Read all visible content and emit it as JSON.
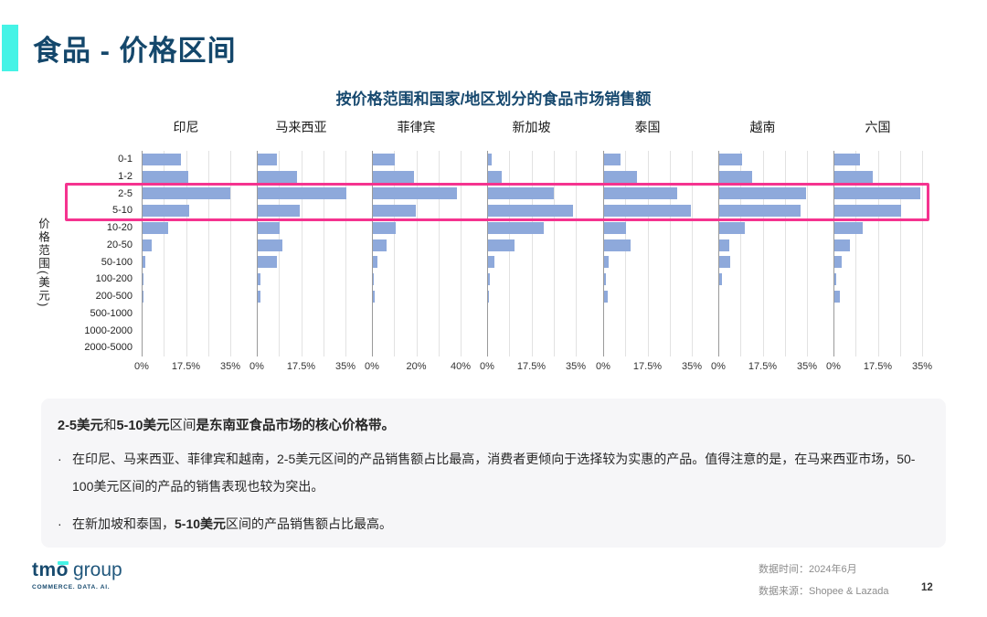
{
  "page": {
    "title": "食品 - 价格区间"
  },
  "theme": {
    "accent_cyan": "#45F3E6",
    "title_navy": "#14476B",
    "bar_blue": "#8EA9DB",
    "highlight_pink": "#F5338F",
    "box_gray": "#F6F6F8",
    "footer_gray": "#8C8C8C"
  },
  "chart": {
    "title": "按价格范围和国家/地区划分的食品市场销售额",
    "y_axis_label": "价格范围(美元)"
  },
  "chart_data": {
    "type": "bar",
    "orientation": "horizontal",
    "unit": "percent of sales",
    "grid": true,
    "categories": [
      "0-1",
      "1-2",
      "2-5",
      "5-10",
      "10-20",
      "20-50",
      "50-100",
      "100-200",
      "200-500",
      "500-1000",
      "1000-2000",
      "2000-5000"
    ],
    "highlighted_categories": [
      "2-5",
      "5-10"
    ],
    "panels": [
      {
        "name": "印尼",
        "axis_max": 35,
        "ticks": [
          "0%",
          "17.5%",
          "35%"
        ],
        "values": [
          15.3,
          17.9,
          34.8,
          18.5,
          10.1,
          3.6,
          1.2,
          0.4,
          0.4,
          0,
          0,
          0
        ]
      },
      {
        "name": "马来西亚",
        "axis_max": 35,
        "ticks": [
          "0%",
          "17.5%",
          "35%"
        ],
        "values": [
          7.7,
          15.5,
          35.0,
          16.4,
          8.5,
          9.6,
          7.7,
          1.2,
          1.0,
          0,
          0,
          0
        ]
      },
      {
        "name": "菲律宾",
        "axis_max": 40,
        "ticks": [
          "0%",
          "20%",
          "40%"
        ],
        "values": [
          9.9,
          18.6,
          37.8,
          19.2,
          10.3,
          6.3,
          2.0,
          0.4,
          0.9,
          0,
          0,
          0
        ]
      },
      {
        "name": "新加坡",
        "axis_max": 35,
        "ticks": [
          "0%",
          "17.5%",
          "35%"
        ],
        "values": [
          1.3,
          5.4,
          26.1,
          33.6,
          22.0,
          10.3,
          2.4,
          0.6,
          0.5,
          0,
          0,
          0
        ]
      },
      {
        "name": "泰国",
        "axis_max": 35,
        "ticks": [
          "0%",
          "17.5%",
          "35%"
        ],
        "values": [
          6.6,
          13.0,
          28.9,
          34.3,
          8.7,
          10.5,
          1.9,
          0.7,
          1.4,
          0,
          0,
          0
        ]
      },
      {
        "name": "越南",
        "axis_max": 35,
        "ticks": [
          "0%",
          "17.5%",
          "35%"
        ],
        "values": [
          9.0,
          13.1,
          34.2,
          32.1,
          10.1,
          4.0,
          4.2,
          1.0,
          0,
          0,
          0,
          0
        ]
      },
      {
        "name": "六国",
        "axis_max": 35,
        "ticks": [
          "0%",
          "17.5%",
          "35%"
        ],
        "values": [
          10.1,
          15.2,
          33.8,
          26.2,
          11.0,
          6.0,
          2.9,
          0.8,
          2.0,
          0,
          0,
          0
        ]
      }
    ]
  },
  "insights": {
    "headline_segments": [
      {
        "text": "2-5美元",
        "bold": true
      },
      {
        "text": "和",
        "bold": false
      },
      {
        "text": "5-10美元",
        "bold": true
      },
      {
        "text": "区间",
        "bold": false
      },
      {
        "text": "是东南亚食品市场的核心价格带。",
        "bold": true
      }
    ],
    "bullets": [
      {
        "segments": [
          {
            "text": "在印尼、马来西亚、菲律宾和越南，2-5美元区间的产品销售额占比最高，消费者更倾向于选择较为实惠的产品。值得注意的是，在马来西亚市场，50-100美元区间的产品的销售表现也较为突出。",
            "bold": false
          }
        ]
      },
      {
        "segments": [
          {
            "text": "在新加坡和泰国，",
            "bold": false
          },
          {
            "text": "5-10美元",
            "bold": true
          },
          {
            "text": "区间的产品销售额占比最高。",
            "bold": false
          }
        ]
      }
    ]
  },
  "footer": {
    "logo_tmo": "tm",
    "logo_o": "o",
    "logo_group": "group",
    "logo_tagline": "COMMERCE. DATA. AI.",
    "data_time": "数据时间：2024年6月",
    "data_source": "数据来源：Shopee & Lazada",
    "page_number": "12"
  }
}
